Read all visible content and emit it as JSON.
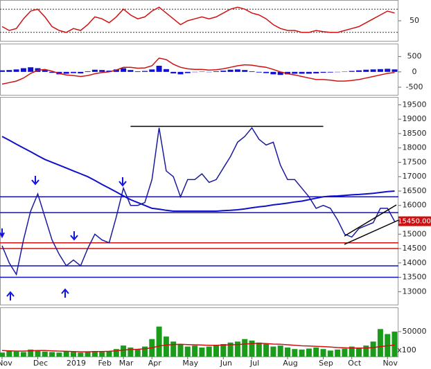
{
  "chart_data": [
    {
      "type": "line",
      "yticks": [
        50
      ],
      "ylim": [
        0,
        100
      ],
      "levels": [
        20,
        80
      ],
      "series": [
        {
          "color": "#d01010",
          "values": [
            35,
            25,
            30,
            55,
            75,
            80,
            60,
            35,
            25,
            20,
            30,
            25,
            40,
            60,
            55,
            45,
            60,
            80,
            65,
            55,
            60,
            75,
            85,
            70,
            55,
            40,
            50,
            55,
            60,
            55,
            60,
            70,
            80,
            85,
            80,
            70,
            65,
            55,
            40,
            30,
            25,
            25,
            20,
            20,
            25,
            22,
            20,
            20,
            25,
            30,
            35,
            45,
            55,
            65,
            75,
            70
          ]
        }
      ]
    },
    {
      "type": "bar",
      "yticks": [
        500,
        0,
        -500
      ],
      "ylim": [
        -750,
        900
      ],
      "series": [
        {
          "color": "#1010d0",
          "style": "bar",
          "values": [
            50,
            60,
            80,
            120,
            150,
            120,
            60,
            -30,
            -80,
            -60,
            -40,
            -50,
            20,
            70,
            60,
            40,
            80,
            120,
            60,
            20,
            30,
            80,
            200,
            90,
            -50,
            -80,
            -40,
            -10,
            10,
            -10,
            20,
            40,
            70,
            80,
            60,
            20,
            -20,
            -40,
            -80,
            -100,
            -80,
            -60,
            -60,
            -60,
            -50,
            -30,
            -20,
            -10,
            10,
            30,
            50,
            70,
            80,
            90,
            100,
            80
          ]
        },
        {
          "color": "#d01010",
          "style": "line",
          "values": [
            -400,
            -350,
            -300,
            -200,
            -50,
            50,
            80,
            20,
            -50,
            -100,
            -120,
            -150,
            -120,
            -60,
            -20,
            0,
            60,
            150,
            150,
            120,
            130,
            200,
            450,
            400,
            250,
            150,
            100,
            80,
            80,
            60,
            70,
            100,
            150,
            200,
            230,
            220,
            180,
            150,
            80,
            0,
            -60,
            -100,
            -150,
            -200,
            -250,
            -250,
            -270,
            -300,
            -300,
            -280,
            -250,
            -200,
            -150,
            -100,
            -50,
            -20
          ]
        }
      ]
    },
    {
      "type": "line",
      "ylim": [
        12550,
        19750
      ],
      "yticks": [
        13000,
        13500,
        14000,
        14500,
        15000,
        15500,
        16000,
        16500,
        17000,
        17500,
        18000,
        18500,
        19000,
        19500
      ],
      "levels": [
        {
          "value": 16300,
          "color": "#1010c0"
        },
        {
          "value": 15750,
          "color": "#1010c0"
        },
        {
          "value": 14700,
          "color": "#d01010"
        },
        {
          "value": 14500,
          "color": "#d01010"
        },
        {
          "value": 13900,
          "color": "#1010c0"
        },
        {
          "value": 13500,
          "color": "#1010c0"
        },
        {
          "value": 18750,
          "color": "#000000",
          "start": 18,
          "end": 45
        }
      ],
      "last_label": {
        "value": 15450,
        "label": "15450.00"
      },
      "series": [
        {
          "color": "#1a1a9c",
          "values": [
            14600,
            14000,
            13600,
            14800,
            15800,
            16400,
            15600,
            14800,
            14300,
            13900,
            14100,
            13900,
            14500,
            15000,
            14800,
            14700,
            15600,
            16600,
            16000,
            16000,
            16100,
            16900,
            18700,
            17200,
            17000,
            16300,
            16900,
            16900,
            17100,
            16800,
            16900,
            17300,
            17700,
            18200,
            18400,
            18700,
            18300,
            18100,
            18200,
            17400,
            16900,
            16900,
            16600,
            16300,
            15900,
            16000,
            15900,
            15500,
            15000,
            14900,
            15200,
            15300,
            15400,
            15900,
            15900,
            15450
          ]
        },
        {
          "color": "#1010c8",
          "width": 2,
          "values": [
            18400,
            18270,
            18130,
            18000,
            17870,
            17730,
            17600,
            17500,
            17400,
            17300,
            17200,
            17100,
            17000,
            16870,
            16730,
            16600,
            16470,
            16330,
            16200,
            16100,
            16000,
            15900,
            15870,
            15830,
            15800,
            15800,
            15800,
            15800,
            15800,
            15800,
            15800,
            15820,
            15830,
            15850,
            15880,
            15920,
            15950,
            15980,
            16020,
            16050,
            16080,
            16120,
            16150,
            16200,
            16250,
            16300,
            16320,
            16330,
            16350,
            16370,
            16380,
            16400,
            16420,
            16450,
            16480,
            16500
          ]
        }
      ]
    },
    {
      "type": "bar",
      "ylim": [
        0,
        97000
      ],
      "yticks": [
        50000
      ],
      "unit_label": "x100",
      "categories": [
        "Nov",
        null,
        null,
        null,
        null,
        "Dec",
        null,
        null,
        null,
        null,
        "2019",
        null,
        null,
        null,
        "Feb",
        null,
        null,
        "Mar",
        null,
        null,
        null,
        "Apr",
        null,
        null,
        null,
        null,
        "May",
        null,
        null,
        null,
        null,
        "Jun",
        null,
        null,
        null,
        "Jul",
        null,
        null,
        null,
        null,
        "Aug",
        null,
        null,
        null,
        null,
        "Sep",
        null,
        null,
        null,
        "Oct",
        null,
        null,
        null,
        null,
        "Nov",
        null
      ],
      "series": [
        {
          "color": "#1a9c1a",
          "style": "bar",
          "values": [
            8000,
            12000,
            10000,
            9000,
            14000,
            12000,
            10000,
            9000,
            8000,
            10000,
            9000,
            8000,
            10000,
            11000,
            9000,
            10000,
            15000,
            22000,
            18000,
            15000,
            20000,
            35000,
            60000,
            40000,
            30000,
            25000,
            20000,
            22000,
            18000,
            20000,
            22000,
            25000,
            28000,
            30000,
            35000,
            32000,
            28000,
            25000,
            20000,
            22000,
            18000,
            15000,
            14000,
            16000,
            18000,
            15000,
            12000,
            14000,
            16000,
            20000,
            18000,
            22000,
            30000,
            55000,
            45000,
            50000
          ]
        },
        {
          "color": "#d01010",
          "style": "line",
          "values": [
            12000,
            11500,
            11000,
            11000,
            11500,
            12000,
            12000,
            11500,
            11000,
            10500,
            10000,
            9500,
            9500,
            10000,
            10000,
            10500,
            11500,
            13000,
            14000,
            14500,
            15500,
            17500,
            21000,
            23000,
            24000,
            24500,
            24000,
            23500,
            23000,
            22500,
            22500,
            23000,
            23500,
            24000,
            25000,
            26000,
            26500,
            26000,
            25000,
            24500,
            23500,
            22500,
            21500,
            21000,
            20500,
            20000,
            19000,
            18000,
            17500,
            17000,
            17000,
            17000,
            18000,
            20000,
            21500,
            23000
          ]
        }
      ]
    }
  ]
}
